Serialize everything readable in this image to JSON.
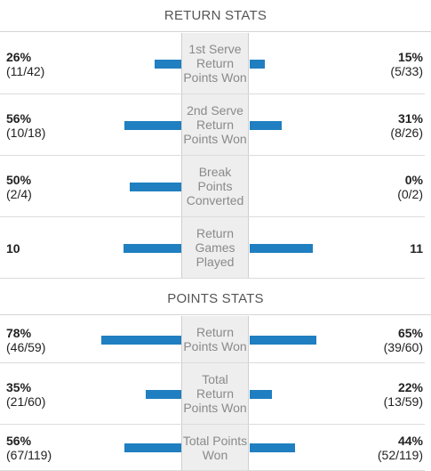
{
  "sections": [
    {
      "title": "RETURN STATS",
      "rows": [
        {
          "label": "1st Serve Return Points Won",
          "left": {
            "pct": "26%",
            "frac": "(11/42)",
            "value": 0.26
          },
          "right": {
            "pct": "15%",
            "frac": "(5/33)",
            "value": 0.15
          }
        },
        {
          "label": "2nd Serve Return Points Won",
          "left": {
            "pct": "56%",
            "frac": "(10/18)",
            "value": 0.56
          },
          "right": {
            "pct": "31%",
            "frac": "(8/26)",
            "value": 0.31
          }
        },
        {
          "label": "Break Points Converted",
          "left": {
            "pct": "50%",
            "frac": "(2/4)",
            "value": 0.5
          },
          "right": {
            "pct": "0%",
            "frac": "(0/2)",
            "value": 0.0
          }
        },
        {
          "label": "Return Games Played",
          "left": {
            "pct": "10",
            "frac": "",
            "value": 10
          },
          "right": {
            "pct": "11",
            "frac": "",
            "value": 11
          }
        }
      ]
    },
    {
      "title": "POINTS STATS",
      "rows": [
        {
          "label": "Return Points Won",
          "left": {
            "pct": "78%",
            "frac": "(46/59)",
            "value": 0.78
          },
          "right": {
            "pct": "65%",
            "frac": "(39/60)",
            "value": 0.65
          }
        },
        {
          "label": "Total Return Points Won",
          "left": {
            "pct": "35%",
            "frac": "(21/60)",
            "value": 0.35
          },
          "right": {
            "pct": "22%",
            "frac": "(13/59)",
            "value": 0.22
          }
        },
        {
          "label": "Total Points Won",
          "left": {
            "pct": "56%",
            "frac": "(67/119)",
            "value": 0.56
          },
          "right": {
            "pct": "44%",
            "frac": "(52/119)",
            "value": 0.44
          }
        }
      ]
    }
  ],
  "colors": {
    "bar": "#1f7fc1",
    "center_bg": "#eeeeee"
  }
}
